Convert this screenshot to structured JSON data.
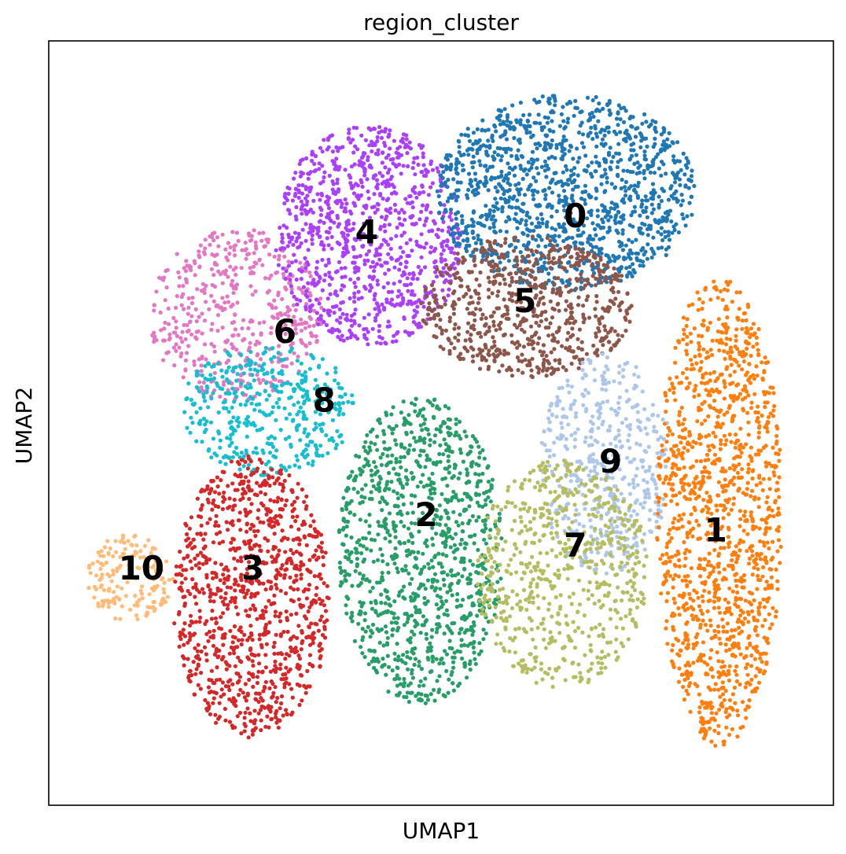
{
  "chart_data": {
    "type": "scatter",
    "title": "region_cluster",
    "xlabel": "UMAP1",
    "ylabel": "UMAP2",
    "xlim": [
      0,
      100
    ],
    "ylim": [
      0,
      100
    ],
    "grid": false,
    "legend": "on data",
    "ticks": "none",
    "clusters": [
      {
        "name": "0",
        "color": "#1f77b4",
        "label_pos": [
          67.1,
          77.1
        ]
      },
      {
        "name": "1",
        "color": "#ff7f0e",
        "label_pos": [
          85.0,
          36.0
        ]
      },
      {
        "name": "2",
        "color": "#279e68",
        "label_pos": [
          48.1,
          38.0
        ]
      },
      {
        "name": "3",
        "color": "#d62728",
        "label_pos": [
          26.0,
          31.0
        ]
      },
      {
        "name": "4",
        "color": "#aa40fc",
        "label_pos": [
          40.5,
          75.0
        ]
      },
      {
        "name": "5",
        "color": "#8c564b",
        "label_pos": [
          60.7,
          66.0
        ]
      },
      {
        "name": "6",
        "color": "#e377c2",
        "label_pos": [
          30.1,
          62.0
        ]
      },
      {
        "name": "7",
        "color": "#b5bd61",
        "label_pos": [
          67.1,
          34.0
        ]
      },
      {
        "name": "8",
        "color": "#17becf",
        "label_pos": [
          35.1,
          53.0
        ]
      },
      {
        "name": "9",
        "color": "#aec7e8",
        "label_pos": [
          71.6,
          45.0
        ]
      },
      {
        "name": "10",
        "color": "#ffbb78",
        "label_pos": [
          11.8,
          31.0
        ]
      }
    ]
  }
}
